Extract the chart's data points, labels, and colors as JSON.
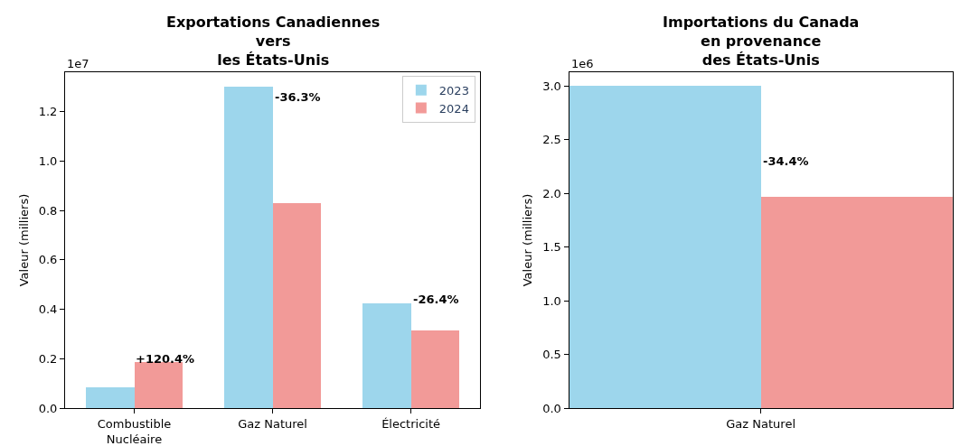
{
  "chart_data": [
    {
      "type": "bar",
      "title": "Exportations Canadiennes\nvers\nles États-Unis",
      "ylabel": "Valeur (milliers)",
      "categories": [
        "Combustible\nNucléaire",
        "Gaz Naturel",
        "Électricité"
      ],
      "series": [
        {
          "name": "2023",
          "color": "#9dd6ec",
          "values": [
            0.084,
            1.302,
            0.425
          ]
        },
        {
          "name": "2024",
          "color": "#f29a98",
          "values": [
            0.185,
            0.829,
            0.313
          ]
        }
      ],
      "ylim": [
        0,
        1.36
      ],
      "yticks": [
        {
          "value": 0,
          "label": "0.0"
        },
        0.2,
        0.4,
        0.6,
        0.8,
        {
          "value": 1,
          "label": "1.0"
        },
        1.2
      ],
      "annotations": [
        "1e7",
        {
          "text": "+120.4%",
          "x": "Combustible\nNucléaire",
          "y": 0.2
        },
        {
          "text": "-36.3%",
          "x": "Gaz Naturel",
          "y": 1.26
        },
        {
          "text": "-26.4%",
          "x": "Électricité",
          "y": 0.44
        }
      ],
      "legend": "top right"
    },
    {
      "type": "bar",
      "title": "Importations du Canada\nen provenance\ndes États-Unis",
      "ylabel": "Valeur (milliers)",
      "categories": [
        "Gaz Naturel"
      ],
      "series": [
        {
          "color": "#9dd6ec",
          "values": [
            3.0
          ]
        },
        {
          "color": "#f29a98",
          "values": [
            1.97
          ]
        }
      ],
      "ylim": [
        0,
        3.13
      ],
      "yticks": [
        {
          "value": 0,
          "label": "0.0"
        },
        0.5,
        {
          "value": 1,
          "label": "1.0"
        },
        1.5,
        {
          "value": 2,
          "label": "2.0"
        },
        2.5,
        {
          "value": 3,
          "label": "3.0"
        }
      ],
      "annotations": [
        "1e6",
        {
          "text": "-34.4%",
          "x": "Gaz Naturel",
          "y": 2.3
        }
      ],
      "legend": false
    }
  ]
}
